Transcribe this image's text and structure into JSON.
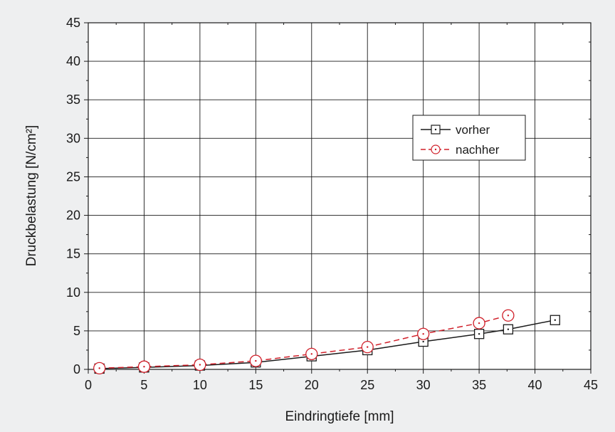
{
  "chart_data": {
    "type": "line",
    "xlabel": "Eindringtiefe [mm]",
    "ylabel": "Druckbelastung [N/cm²]",
    "xlim": [
      0,
      45
    ],
    "ylim": [
      0,
      45
    ],
    "xticks": [
      0,
      5,
      10,
      15,
      20,
      25,
      30,
      35,
      40,
      45
    ],
    "yticks": [
      0,
      5,
      10,
      15,
      20,
      25,
      30,
      35,
      40,
      45
    ],
    "grid": true,
    "legend_position": "right",
    "series": [
      {
        "name": "vorher",
        "color": "#1a1a1a",
        "line_style": "solid",
        "marker": "square",
        "x": [
          1,
          5,
          10,
          15,
          20,
          25,
          30,
          35,
          37.6,
          41.8
        ],
        "y": [
          0.1,
          0.25,
          0.5,
          0.9,
          1.7,
          2.5,
          3.6,
          4.6,
          5.2,
          6.4
        ]
      },
      {
        "name": "nachher",
        "color": "#d0202a",
        "line_style": "dashed",
        "marker": "circle",
        "x": [
          1,
          5,
          10,
          15,
          20,
          25,
          30,
          35,
          37.6
        ],
        "y": [
          0.15,
          0.35,
          0.6,
          1.1,
          2.0,
          2.9,
          4.6,
          6.0,
          7.0
        ]
      }
    ]
  }
}
